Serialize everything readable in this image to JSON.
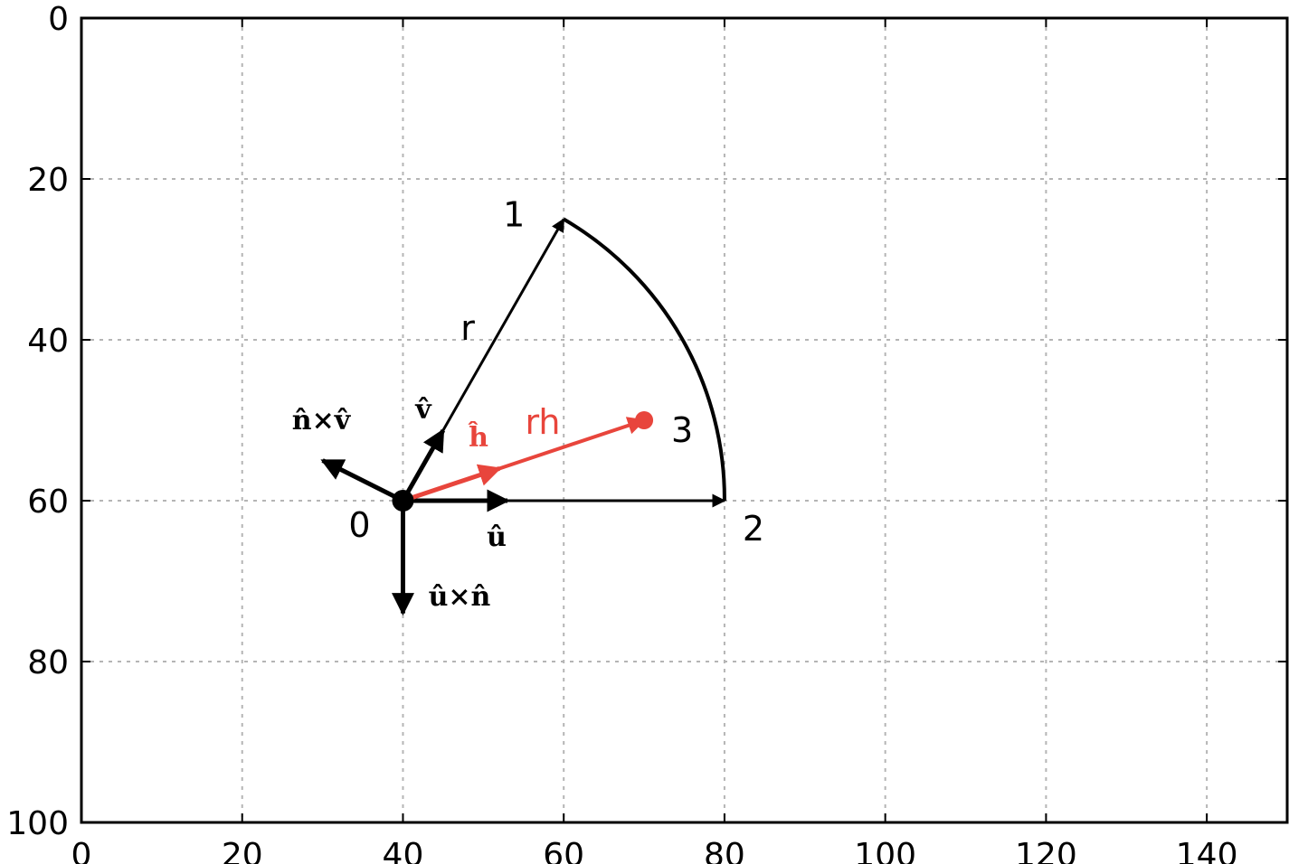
{
  "chart_data": {
    "type": "diagram",
    "x_axis": {
      "range": [
        0,
        150
      ],
      "ticks": [
        0,
        20,
        40,
        60,
        80,
        100,
        120,
        140
      ]
    },
    "y_axis": {
      "range": [
        0,
        100
      ],
      "inverted": true,
      "ticks": [
        0,
        20,
        40,
        60,
        80,
        100
      ]
    },
    "grid": true,
    "points": [
      {
        "label": "0",
        "x": 40,
        "y": 60
      },
      {
        "label": "1",
        "x": 60,
        "y": 25
      },
      {
        "label": "2",
        "x": 80,
        "y": 60
      },
      {
        "label": "3",
        "x": 70,
        "y": 50
      }
    ],
    "segments": [
      {
        "from": [
          40,
          60
        ],
        "to": [
          60,
          25
        ],
        "label": "r"
      },
      {
        "from": [
          40,
          60
        ],
        "to": [
          80,
          60
        ]
      },
      {
        "from": [
          40,
          60
        ],
        "to": [
          70,
          50
        ],
        "label": "rh",
        "color": "#e8453c"
      }
    ],
    "arc": {
      "from": [
        60,
        25
      ],
      "to": [
        80,
        60
      ],
      "center": [
        40,
        60
      ]
    },
    "unit_vectors": [
      {
        "label": "v̂",
        "from": [
          40,
          60
        ],
        "to": [
          45,
          51.25
        ]
      },
      {
        "label": "û",
        "from": [
          40,
          60
        ],
        "to": [
          53,
          60
        ]
      },
      {
        "label": "n̂×v̂",
        "from": [
          40,
          60
        ],
        "to": [
          30,
          55
        ]
      },
      {
        "label": "û×n̂",
        "from": [
          40,
          60
        ],
        "to": [
          40,
          74
        ]
      },
      {
        "label": "ĥ",
        "from": [
          40,
          60
        ],
        "to": [
          52,
          56
        ],
        "color": "#e8453c"
      }
    ],
    "colors": {
      "main": "#000000",
      "highlight": "#e8453c",
      "grid": "#b5b5b5"
    }
  }
}
